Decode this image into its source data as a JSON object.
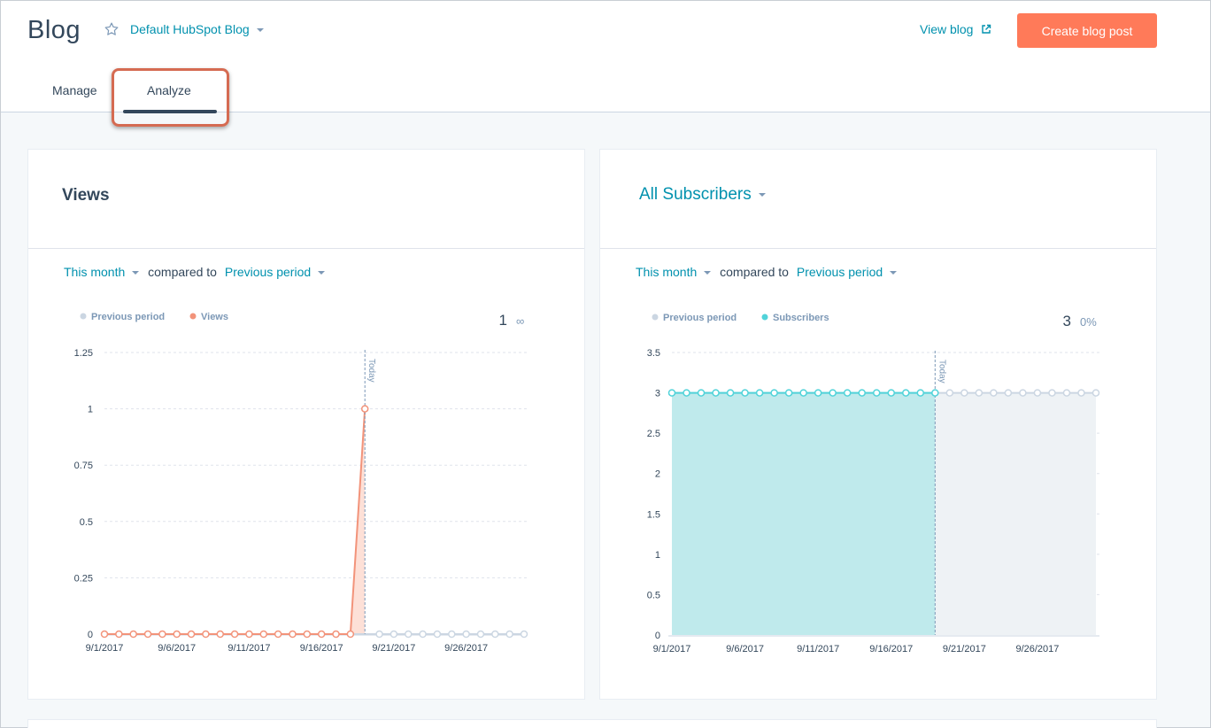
{
  "header": {
    "title": "Blog",
    "blog_selector": "Default HubSpot Blog",
    "view_blog": "View blog",
    "create_button": "Create blog post"
  },
  "tabs": [
    {
      "label": "Manage",
      "active": false
    },
    {
      "label": "Analyze",
      "active": true
    }
  ],
  "colors": {
    "accent": "#0091ae",
    "primary_button": "#ff7a59",
    "views_series": "#f2937a",
    "subscribers_series": "#51d3d9",
    "previous_series": "#cbd6e2",
    "highlight": "#d56b52"
  },
  "views_card": {
    "title": "Views",
    "range": "This month",
    "compared_to": "compared to",
    "comparison": "Previous period",
    "legend_previous": "Previous period",
    "legend_current": "Views",
    "total": "1",
    "change": "∞",
    "today_label": "Today"
  },
  "subscribers_card": {
    "title": "All Subscribers",
    "range": "This month",
    "compared_to": "compared to",
    "comparison": "Previous period",
    "legend_previous": "Previous period",
    "legend_current": "Subscribers",
    "total": "3",
    "change": "0%",
    "today_label": "Today"
  },
  "chart_data": [
    {
      "type": "line",
      "x_tick_labels": [
        "9/1/2017",
        "9/6/2017",
        "9/11/2017",
        "9/16/2017",
        "9/21/2017",
        "9/26/2017"
      ],
      "ylim": [
        0,
        1.25
      ],
      "y_ticks": [
        0,
        0.25,
        0.5,
        0.75,
        1,
        1.25
      ],
      "today_day": 19,
      "series": [
        {
          "name": "Previous period",
          "x_days": [
            1,
            2,
            3,
            4,
            5,
            6,
            7,
            8,
            9,
            10,
            11,
            12,
            13,
            14,
            15,
            16,
            17,
            18,
            19,
            20,
            21,
            22,
            23,
            24,
            25,
            26,
            27,
            28,
            29,
            30
          ],
          "values": [
            0,
            0,
            0,
            0,
            0,
            0,
            0,
            0,
            0,
            0,
            0,
            0,
            0,
            0,
            0,
            0,
            0,
            0,
            0,
            0,
            0,
            0,
            0,
            0,
            0,
            0,
            0,
            0,
            0,
            0
          ]
        },
        {
          "name": "Views",
          "x_days": [
            1,
            2,
            3,
            4,
            5,
            6,
            7,
            8,
            9,
            10,
            11,
            12,
            13,
            14,
            15,
            16,
            17,
            18,
            19
          ],
          "values": [
            0,
            0,
            0,
            0,
            0,
            0,
            0,
            0,
            0,
            0,
            0,
            0,
            0,
            0,
            0,
            0,
            0,
            0,
            1
          ]
        }
      ],
      "grid": true
    },
    {
      "type": "area",
      "x_tick_labels": [
        "9/1/2017",
        "9/6/2017",
        "9/11/2017",
        "9/16/2017",
        "9/21/2017",
        "9/26/2017"
      ],
      "ylim": [
        0,
        3.5
      ],
      "y_ticks": [
        0,
        0.5,
        1,
        1.5,
        2,
        2.5,
        3,
        3.5
      ],
      "today_day": 19,
      "series": [
        {
          "name": "Previous period",
          "x_days": [
            1,
            2,
            3,
            4,
            5,
            6,
            7,
            8,
            9,
            10,
            11,
            12,
            13,
            14,
            15,
            16,
            17,
            18,
            19,
            20,
            21,
            22,
            23,
            24,
            25,
            26,
            27,
            28,
            29,
            30
          ],
          "values": [
            3,
            3,
            3,
            3,
            3,
            3,
            3,
            3,
            3,
            3,
            3,
            3,
            3,
            3,
            3,
            3,
            3,
            3,
            3,
            3,
            3,
            3,
            3,
            3,
            3,
            3,
            3,
            3,
            3,
            3
          ]
        },
        {
          "name": "Subscribers",
          "x_days": [
            1,
            2,
            3,
            4,
            5,
            6,
            7,
            8,
            9,
            10,
            11,
            12,
            13,
            14,
            15,
            16,
            17,
            18,
            19
          ],
          "values": [
            3,
            3,
            3,
            3,
            3,
            3,
            3,
            3,
            3,
            3,
            3,
            3,
            3,
            3,
            3,
            3,
            3,
            3,
            3
          ]
        }
      ],
      "grid": true
    }
  ]
}
